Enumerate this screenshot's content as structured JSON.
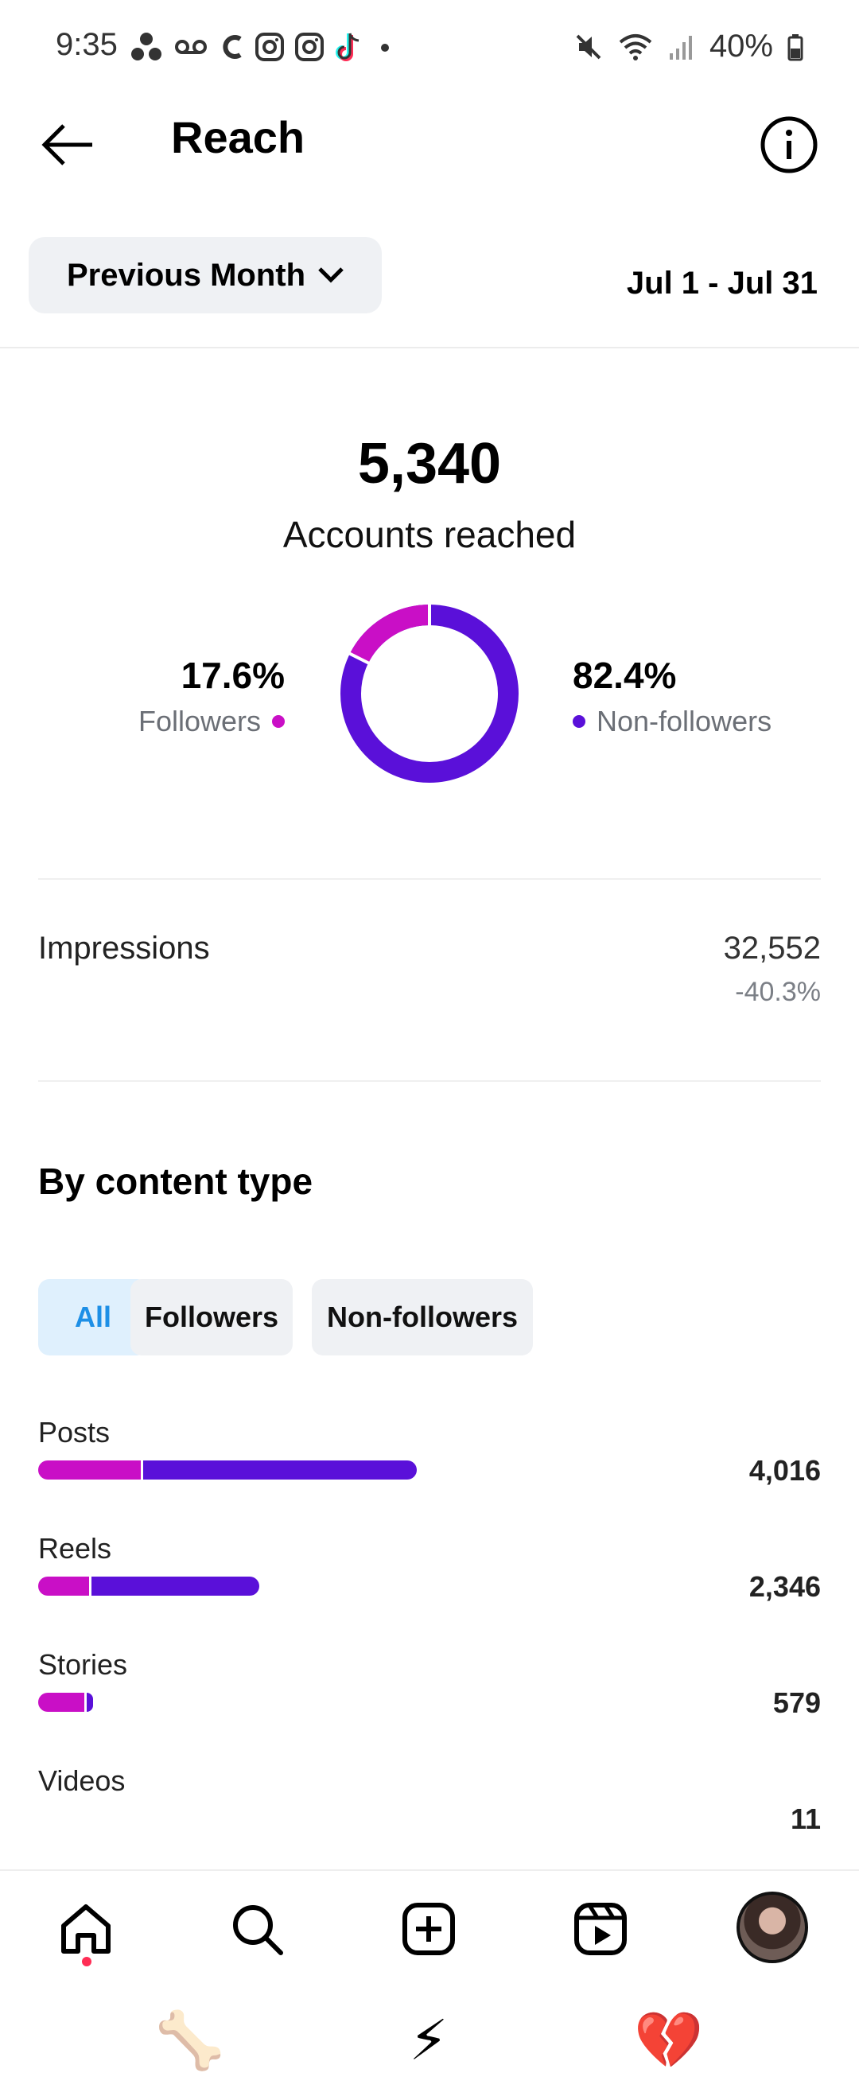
{
  "status_bar": {
    "time": "9:35",
    "battery": "40%",
    "icons_left": [
      "assistant-icon",
      "voicemail-icon",
      "c-app-icon",
      "instagram-icon",
      "instagram-icon",
      "tiktok-icon",
      "more-dot-icon"
    ],
    "icons_right": [
      "mute-icon",
      "wifi-icon",
      "signal-icon",
      "battery-icon"
    ]
  },
  "header": {
    "title": "Reach"
  },
  "period": {
    "selected": "Previous Month",
    "date_range": "Jul 1 - Jul 31"
  },
  "reach": {
    "accounts_reached": "5,340",
    "label": "Accounts reached",
    "followers_pct": "17.6%",
    "followers_label": "Followers",
    "non_followers_pct": "82.4%",
    "non_followers_label": "Non-followers",
    "followers_fraction": 0.176,
    "colors": {
      "followers": "#c90fc6",
      "non_followers": "#5a10d9"
    }
  },
  "impressions": {
    "label": "Impressions",
    "value": "32,552",
    "change": "-40.3%"
  },
  "content_type": {
    "title": "By content type",
    "filters": [
      "All",
      "Followers",
      "Non-followers"
    ],
    "active_filter": "All",
    "rows": [
      {
        "label": "Posts",
        "value": "4,016",
        "total": 4016,
        "followers_fraction": 0.27
      },
      {
        "label": "Reels",
        "value": "2,346",
        "total": 2346,
        "followers_fraction": 0.23
      },
      {
        "label": "Stories",
        "value": "579",
        "total": 579,
        "followers_fraction": 0.85
      },
      {
        "label": "Videos",
        "value": "11",
        "total": 11,
        "followers_fraction": 0.0
      }
    ]
  },
  "bottom_nav": {
    "items": [
      "home-icon",
      "search-icon",
      "create-icon",
      "reels-icon",
      "profile-avatar"
    ]
  },
  "emoji_row": [
    "🦴",
    "⚡",
    "💔"
  ]
}
